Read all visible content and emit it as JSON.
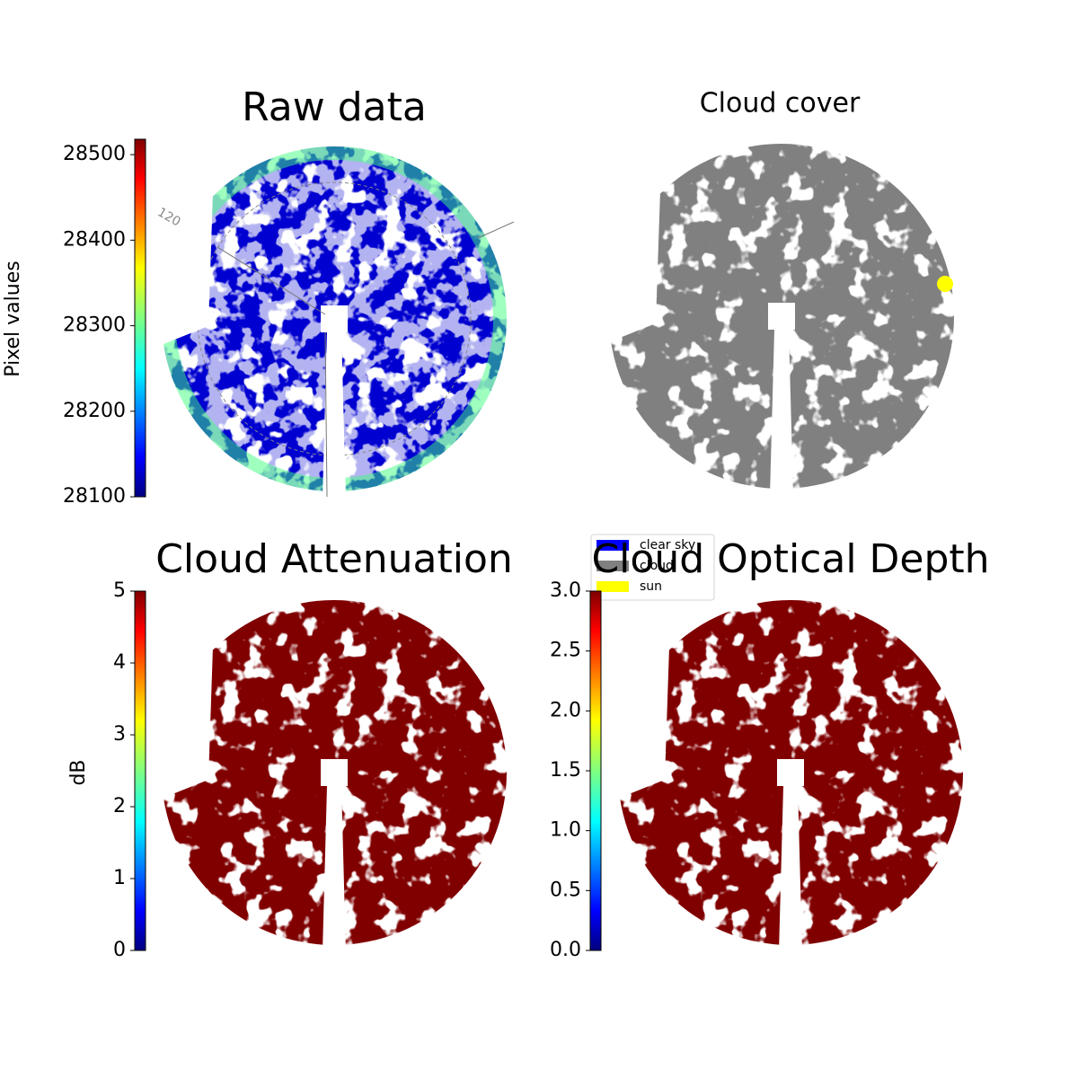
{
  "panels": [
    {
      "title": "Raw data",
      "colorbar": {
        "label": "Pixel values",
        "lim": [
          28100,
          28518
        ],
        "ticks": [
          28100,
          28200,
          28300,
          28400,
          28500
        ]
      },
      "annotations": [
        "120"
      ]
    },
    {
      "title": "Cloud cover",
      "legend": [
        {
          "name": "clear sky",
          "color": "#0000ff"
        },
        {
          "name": "cloud",
          "color": "#808080"
        },
        {
          "name": "sun",
          "color": "#ffff00"
        }
      ]
    },
    {
      "title": "Cloud Attenuation",
      "colorbar": {
        "label": "dB",
        "lim": [
          0,
          5
        ],
        "ticks": [
          0,
          1,
          2,
          3,
          4,
          5
        ]
      }
    },
    {
      "title": "Cloud Optical Depth",
      "colorbar": {
        "lim": [
          0,
          3
        ],
        "ticks": [
          {
            "value": 0,
            "label": "0.0"
          },
          0.5,
          {
            "value": 1,
            "label": "1.0"
          },
          1.5,
          {
            "value": 2,
            "label": "2.0"
          },
          2.5,
          {
            "value": 3,
            "label": "3.0"
          }
        ]
      }
    }
  ]
}
